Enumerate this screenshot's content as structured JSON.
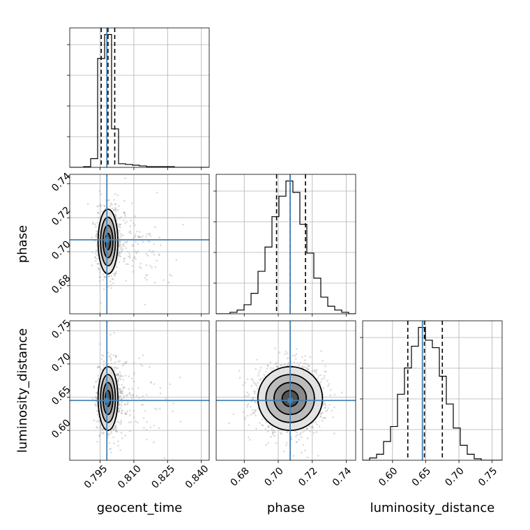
{
  "chart_data": {
    "type": "corner",
    "parameters": [
      "geocent_time",
      "phase",
      "luminosity_distance"
    ],
    "truths": {
      "geocent_time": 0.798,
      "phase": 0.707,
      "luminosity_distance": 0.645
    },
    "quantiles": {
      "geocent_time": [
        0.7955,
        0.7985,
        0.8015
      ],
      "phase": [
        0.699,
        0.707,
        0.716
      ],
      "luminosity_distance": [
        0.623,
        0.648,
        0.675
      ]
    },
    "ranges": {
      "geocent_time": [
        0.7815,
        0.8435
      ],
      "phase": [
        0.6635,
        0.7455
      ],
      "luminosity_distance": [
        0.555,
        0.765
      ]
    },
    "ticks": {
      "geocent_time": [
        {
          "value": 0.795,
          "label": "0.795"
        },
        {
          "value": 0.81,
          "label": "0.810"
        },
        {
          "value": 0.825,
          "label": "0.825"
        },
        {
          "value": 0.84,
          "label": "0.840"
        }
      ],
      "phase": [
        {
          "value": 0.68,
          "label": "0.68"
        },
        {
          "value": 0.7,
          "label": "0.70"
        },
        {
          "value": 0.72,
          "label": "0.72"
        },
        {
          "value": 0.74,
          "label": "0.74"
        }
      ],
      "luminosity_distance": [
        {
          "value": 0.6,
          "label": "0.60"
        },
        {
          "value": 0.65,
          "label": "0.65"
        },
        {
          "value": 0.7,
          "label": "0.70"
        },
        {
          "value": 0.75,
          "label": "0.75"
        }
      ]
    },
    "histograms": {
      "geocent_time": {
        "edges": [
          0.7815,
          0.7846,
          0.7877,
          0.7908,
          0.7939,
          0.797,
          0.8001,
          0.8032,
          0.8063,
          0.8094,
          0.8125,
          0.8156,
          0.8187,
          0.8218,
          0.8249,
          0.828,
          0.8311,
          0.8342,
          0.8373,
          0.8404,
          0.8435
        ],
        "counts": [
          0,
          0,
          1,
          12,
          150,
          183,
          53,
          5,
          4,
          3,
          2,
          1,
          1,
          1,
          1,
          0,
          0,
          0,
          0,
          0
        ]
      },
      "phase": {
        "edges": [
          0.6635,
          0.6676,
          0.6717,
          0.6758,
          0.6799,
          0.684,
          0.6881,
          0.6922,
          0.6963,
          0.7004,
          0.7045,
          0.7086,
          0.7127,
          0.7168,
          0.7209,
          0.725,
          0.7291,
          0.7332,
          0.7373,
          0.7414,
          0.7455
        ],
        "counts": [
          0,
          0,
          2,
          5,
          12,
          27,
          56,
          88,
          128,
          155,
          175,
          160,
          118,
          80,
          47,
          22,
          10,
          5,
          2,
          0
        ]
      },
      "luminosity_distance": {
        "edges": [
          0.555,
          0.5655,
          0.576,
          0.5865,
          0.597,
          0.6075,
          0.618,
          0.6285,
          0.639,
          0.6495,
          0.66,
          0.6705,
          0.681,
          0.6915,
          0.702,
          0.7125,
          0.723,
          0.7335,
          0.744,
          0.7545,
          0.765
        ],
        "counts": [
          0,
          3,
          8,
          25,
          45,
          88,
          123,
          152,
          177,
          160,
          150,
          112,
          75,
          43,
          20,
          8,
          2,
          0,
          0,
          0
        ]
      }
    },
    "pairs": [
      {
        "x": "geocent_time",
        "y": "phase",
        "center": [
          0.7985,
          0.706
        ],
        "sigma": [
          0.0022,
          0.0095
        ],
        "rho": 0,
        "contour_levels": [
          0.5,
          1.0,
          1.5,
          2.0
        ],
        "scatter_count": 1000
      },
      {
        "x": "geocent_time",
        "y": "luminosity_distance",
        "center": [
          0.7985,
          0.648
        ],
        "sigma": [
          0.0022,
          0.024
        ],
        "rho": 0,
        "contour_levels": [
          0.5,
          1.0,
          1.5,
          2.0
        ],
        "scatter_count": 1000
      },
      {
        "x": "phase",
        "y": "luminosity_distance",
        "center": [
          0.707,
          0.648
        ],
        "sigma": [
          0.0095,
          0.024
        ],
        "rho": 0,
        "contour_levels": [
          0.5,
          1.0,
          1.5,
          2.0
        ],
        "scatter_count": 1400
      }
    ],
    "grid": true,
    "colors": {
      "truth": "#4682b4",
      "contour": "#000000",
      "samples": "#9a9a9a",
      "density": "#333333"
    }
  }
}
